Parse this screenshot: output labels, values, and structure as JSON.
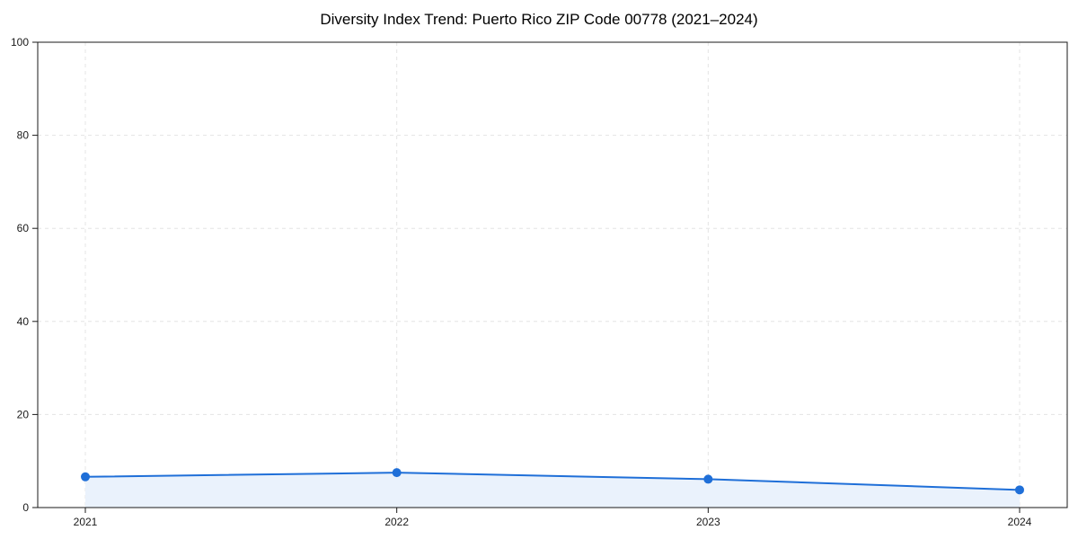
{
  "title": "Diversity Index Trend: Puerto Rico ZIP Code 00778 (2021–2024)",
  "chart_data": {
    "type": "line",
    "title": "Diversity Index Trend: Puerto Rico ZIP Code 00778 (2021–2024)",
    "x": [
      "2021",
      "2022",
      "2023",
      "2024"
    ],
    "series": [
      {
        "name": "Diversity Index",
        "values": [
          6.6,
          7.5,
          6.1,
          3.8
        ]
      }
    ],
    "xlabel": "",
    "ylabel": "",
    "ylim": [
      0,
      100
    ],
    "yticks": [
      0,
      20,
      40,
      60,
      80,
      100
    ],
    "grid": "dashed-both-axes",
    "legend": "none",
    "style": {
      "line_color": "#1f6fd8",
      "marker_color": "#1f6fd8",
      "fill_color": "#eaf2fc",
      "grid_color": "#e4e4e4",
      "axis_color": "#1a1a1a",
      "tick_label_color": "#1a1a1a",
      "background": "#ffffff"
    }
  }
}
